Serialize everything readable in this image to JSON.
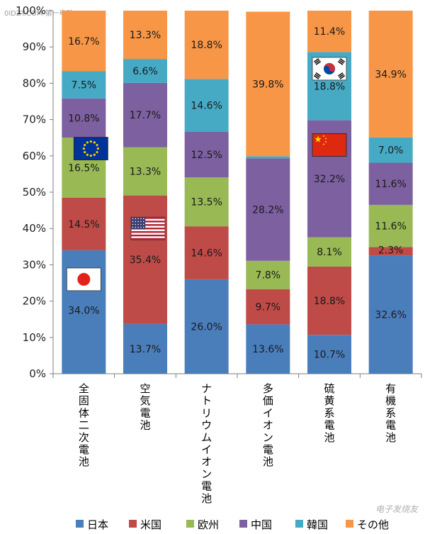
{
  "watermark_top": "0lDZY.COM 第一电动",
  "watermark_bottom": "电子发烧友",
  "chart_data": {
    "type": "bar",
    "stacked": true,
    "categories": [
      "全固体二次電池",
      "空気電池",
      "ナトリウムイオン電池",
      "多価イオン電池",
      "硫黄系電池",
      "有機系電池"
    ],
    "ylim": [
      0,
      100
    ],
    "yticks": [
      "0%",
      "10%",
      "20%",
      "30%",
      "40%",
      "50%",
      "60%",
      "70%",
      "80%",
      "90%",
      "100%"
    ],
    "grid": false,
    "legend_position": "bottom",
    "series": [
      {
        "name": "日本",
        "color": "#4a7ebb",
        "values": [
          34.0,
          13.7,
          26.0,
          13.6,
          10.7,
          32.6
        ]
      },
      {
        "name": "米国",
        "color": "#be4b48",
        "values": [
          14.5,
          35.4,
          14.6,
          9.7,
          18.8,
          2.3
        ]
      },
      {
        "name": "欧州",
        "color": "#98b954",
        "values": [
          16.5,
          13.3,
          13.5,
          7.8,
          8.1,
          11.6
        ]
      },
      {
        "name": "中国",
        "color": "#7d60a0",
        "values": [
          10.8,
          17.7,
          12.5,
          28.2,
          32.2,
          11.6
        ]
      },
      {
        "name": "韓国",
        "color": "#46aac5",
        "values": [
          7.5,
          6.6,
          14.6,
          0.6,
          18.8,
          7.0
        ]
      },
      {
        "name": "その他",
        "color": "#f79646",
        "values": [
          16.7,
          13.3,
          18.8,
          39.8,
          11.4,
          34.9
        ]
      }
    ],
    "data_labels": [
      [
        "34.0%",
        "13.7%",
        "26.0%",
        "13.6%",
        "10.7%",
        "32.6%"
      ],
      [
        "14.5%",
        "35.4%",
        "14.6%",
        "9.7%",
        "18.8%",
        "2.3%"
      ],
      [
        "16.5%",
        "13.3%",
        "13.5%",
        "7.8%",
        "8.1%",
        "11.6%"
      ],
      [
        "10.8%",
        "17.7%",
        "12.5%",
        "28.2%",
        "32.2%",
        "11.6%"
      ],
      [
        "7.5%",
        "6.6%",
        "14.6%",
        "",
        "18.8%",
        "7.0%"
      ],
      [
        "16.7%",
        "13.3%",
        "18.8%",
        "39.8%",
        "11.4%",
        "34.9%"
      ]
    ],
    "flags": [
      {
        "icon": "japan-flag-icon",
        "category": 0,
        "value": 26
      },
      {
        "icon": "eu-flag-icon",
        "category": 0,
        "value": 62
      },
      {
        "icon": "usa-flag-icon",
        "category": 1,
        "value": 40
      },
      {
        "icon": "korea-flag-icon",
        "category": 4,
        "value": 84
      },
      {
        "icon": "china-flag-icon",
        "category": 4,
        "value": 63
      }
    ]
  }
}
